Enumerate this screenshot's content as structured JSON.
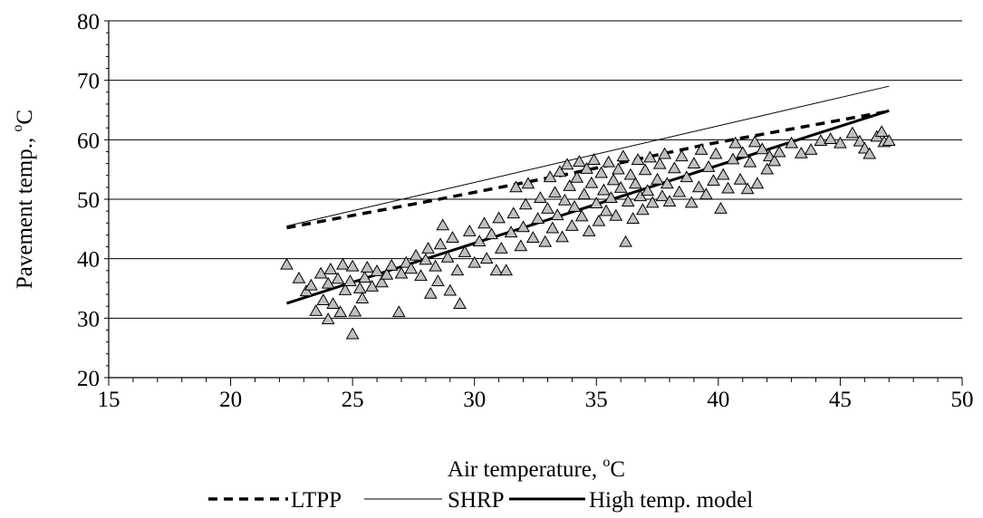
{
  "chart_data": {
    "type": "scatter",
    "title": "",
    "xlabel": "Air temperature, ",
    "xlabel_unit_sup": "o",
    "xlabel_unit": "C",
    "ylabel": "Pavement temp., ",
    "ylabel_unit_sup": "o",
    "ylabel_unit": "C",
    "xlim": [
      15,
      50
    ],
    "ylim": [
      20,
      80
    ],
    "x_ticks": [
      15,
      20,
      25,
      30,
      35,
      40,
      45,
      50
    ],
    "y_ticks": [
      20,
      30,
      40,
      50,
      60,
      70,
      80
    ],
    "x_minor_step": 1,
    "y_minor_step": 2,
    "grid": "horizontal",
    "legend_position": "bottom",
    "legend": [
      {
        "label": "LTPP",
        "style": "dashed"
      },
      {
        "label": "SHRP",
        "style": "thin"
      },
      {
        "label": "High temp. model",
        "style": "thick"
      }
    ],
    "lines": [
      {
        "name": "LTPP",
        "style": "dashed",
        "points": [
          [
            22.3,
            45.2
          ],
          [
            28.3,
            49.8
          ],
          [
            33.8,
            54.2
          ],
          [
            39.5,
            59.2
          ],
          [
            47.0,
            64.8
          ]
        ]
      },
      {
        "name": "SHRP",
        "style": "thin",
        "points": [
          [
            22.3,
            45.5
          ],
          [
            47.0,
            69.0
          ]
        ]
      },
      {
        "name": "High temp. model",
        "style": "thick",
        "points": [
          [
            22.3,
            32.5
          ],
          [
            47.0,
            64.9
          ]
        ]
      }
    ],
    "scatter_points": [
      [
        22.3,
        39.0
      ],
      [
        22.8,
        36.7
      ],
      [
        23.1,
        34.5
      ],
      [
        23.3,
        35.5
      ],
      [
        23.5,
        31.2
      ],
      [
        23.7,
        37.5
      ],
      [
        23.8,
        33.0
      ],
      [
        24.0,
        29.8
      ],
      [
        24.0,
        35.8
      ],
      [
        24.1,
        38.2
      ],
      [
        24.2,
        32.4
      ],
      [
        24.4,
        36.6
      ],
      [
        24.5,
        31.0
      ],
      [
        24.6,
        39.0
      ],
      [
        24.7,
        34.7
      ],
      [
        24.9,
        36.2
      ],
      [
        25.0,
        27.3
      ],
      [
        25.0,
        38.7
      ],
      [
        25.1,
        31.1
      ],
      [
        25.3,
        35.0
      ],
      [
        25.4,
        33.3
      ],
      [
        25.5,
        36.8
      ],
      [
        25.6,
        38.5
      ],
      [
        25.8,
        35.3
      ],
      [
        26.0,
        37.9
      ],
      [
        26.2,
        36.0
      ],
      [
        26.4,
        37.3
      ],
      [
        26.6,
        38.8
      ],
      [
        26.9,
        31.0
      ],
      [
        27.0,
        37.5
      ],
      [
        27.2,
        39.3
      ],
      [
        27.4,
        38.3
      ],
      [
        27.6,
        40.5
      ],
      [
        27.8,
        37.1
      ],
      [
        28.0,
        39.8
      ],
      [
        28.1,
        41.7
      ],
      [
        28.2,
        34.1
      ],
      [
        28.4,
        38.7
      ],
      [
        28.5,
        36.2
      ],
      [
        28.6,
        42.4
      ],
      [
        28.7,
        45.6
      ],
      [
        28.9,
        40.2
      ],
      [
        29.0,
        34.6
      ],
      [
        29.1,
        43.5
      ],
      [
        29.3,
        38.0
      ],
      [
        29.4,
        32.4
      ],
      [
        29.6,
        41.1
      ],
      [
        29.8,
        44.6
      ],
      [
        30.0,
        39.3
      ],
      [
        30.2,
        42.9
      ],
      [
        30.4,
        45.9
      ],
      [
        30.5,
        40.0
      ],
      [
        30.7,
        44.1
      ],
      [
        30.9,
        38.0
      ],
      [
        31.0,
        46.8
      ],
      [
        31.1,
        41.7
      ],
      [
        31.3,
        38.0
      ],
      [
        31.5,
        44.4
      ],
      [
        31.6,
        47.6
      ],
      [
        31.7,
        52.0
      ],
      [
        31.9,
        42.1
      ],
      [
        32.0,
        45.3
      ],
      [
        32.1,
        49.1
      ],
      [
        32.2,
        52.6
      ],
      [
        32.4,
        43.5
      ],
      [
        32.6,
        46.7
      ],
      [
        32.7,
        50.2
      ],
      [
        32.9,
        42.8
      ],
      [
        33.0,
        48.4
      ],
      [
        33.1,
        53.7
      ],
      [
        33.2,
        45.1
      ],
      [
        33.3,
        51.1
      ],
      [
        33.4,
        47.3
      ],
      [
        33.5,
        54.6
      ],
      [
        33.6,
        43.6
      ],
      [
        33.7,
        49.8
      ],
      [
        33.8,
        55.8
      ],
      [
        33.9,
        52.2
      ],
      [
        34.0,
        45.5
      ],
      [
        34.1,
        48.7
      ],
      [
        34.2,
        53.6
      ],
      [
        34.3,
        56.3
      ],
      [
        34.4,
        47.1
      ],
      [
        34.5,
        50.8
      ],
      [
        34.6,
        55.1
      ],
      [
        34.7,
        44.6
      ],
      [
        34.8,
        52.7
      ],
      [
        34.9,
        56.6
      ],
      [
        35.0,
        49.3
      ],
      [
        35.1,
        46.3
      ],
      [
        35.2,
        54.4
      ],
      [
        35.3,
        51.5
      ],
      [
        35.4,
        48.0
      ],
      [
        35.5,
        56.2
      ],
      [
        35.6,
        50.2
      ],
      [
        35.7,
        53.2
      ],
      [
        35.8,
        47.2
      ],
      [
        35.9,
        55.0
      ],
      [
        36.0,
        51.9
      ],
      [
        36.1,
        57.2
      ],
      [
        36.2,
        42.8
      ],
      [
        36.3,
        49.6
      ],
      [
        36.4,
        54.1
      ],
      [
        36.5,
        46.7
      ],
      [
        36.6,
        52.6
      ],
      [
        36.7,
        56.6
      ],
      [
        36.8,
        50.5
      ],
      [
        36.9,
        48.2
      ],
      [
        37.0,
        54.9
      ],
      [
        37.1,
        51.4
      ],
      [
        37.2,
        57.0
      ],
      [
        37.3,
        49.4
      ],
      [
        37.5,
        53.3
      ],
      [
        37.6,
        55.9
      ],
      [
        37.7,
        50.5
      ],
      [
        37.8,
        57.6
      ],
      [
        37.9,
        52.6
      ],
      [
        38.0,
        49.6
      ],
      [
        38.2,
        55.2
      ],
      [
        38.4,
        51.2
      ],
      [
        38.5,
        57.2
      ],
      [
        38.7,
        53.7
      ],
      [
        38.9,
        49.4
      ],
      [
        39.0,
        56.0
      ],
      [
        39.2,
        52.0
      ],
      [
        39.3,
        58.3
      ],
      [
        39.5,
        50.8
      ],
      [
        39.6,
        55.4
      ],
      [
        39.8,
        53.1
      ],
      [
        39.9,
        57.6
      ],
      [
        40.1,
        48.4
      ],
      [
        40.2,
        54.1
      ],
      [
        40.4,
        51.8
      ],
      [
        40.6,
        56.7
      ],
      [
        40.7,
        59.4
      ],
      [
        40.9,
        53.3
      ],
      [
        41.0,
        57.8
      ],
      [
        41.2,
        51.7
      ],
      [
        41.3,
        56.2
      ],
      [
        41.5,
        59.6
      ],
      [
        41.6,
        52.6
      ],
      [
        41.8,
        58.4
      ],
      [
        42.0,
        55.0
      ],
      [
        42.1,
        57.2
      ],
      [
        42.3,
        56.4
      ],
      [
        42.5,
        57.9
      ],
      [
        43.0,
        59.4
      ],
      [
        43.4,
        57.7
      ],
      [
        43.8,
        58.3
      ],
      [
        44.2,
        59.8
      ],
      [
        44.6,
        60.1
      ],
      [
        45.0,
        59.4
      ],
      [
        45.5,
        61.1
      ],
      [
        45.8,
        59.7
      ],
      [
        46.0,
        58.5
      ],
      [
        46.2,
        57.6
      ],
      [
        46.5,
        60.5
      ],
      [
        46.7,
        61.3
      ],
      [
        46.8,
        59.6
      ],
      [
        47.0,
        59.8
      ]
    ]
  }
}
